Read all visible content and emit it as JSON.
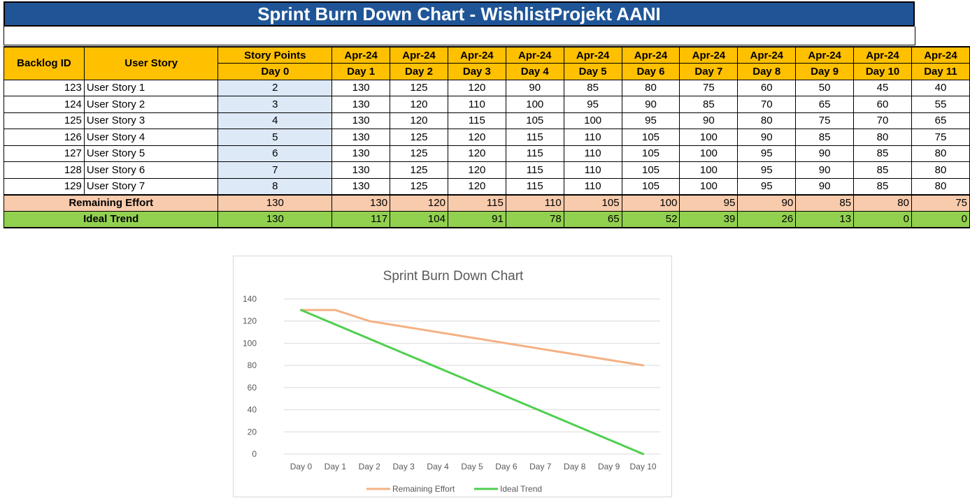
{
  "sheet": {
    "title": "Sprint Burn Down Chart - WishlistProjekt AANI",
    "headers": {
      "backlog_id": "Backlog ID",
      "user_story": "User Story",
      "story_points": "Story Points",
      "day0": "Day 0",
      "month_labels": [
        "Apr-24",
        "Apr-24",
        "Apr-24",
        "Apr-24",
        "Apr-24",
        "Apr-24",
        "Apr-24",
        "Apr-24",
        "Apr-24",
        "Apr-24",
        "Apr-24"
      ],
      "day_labels": [
        "Day 1",
        "Day 2",
        "Day 3",
        "Day 4",
        "Day 5",
        "Day 6",
        "Day 7",
        "Day 8",
        "Day 9",
        "Day 10",
        "Day 11"
      ]
    },
    "rows": [
      {
        "id": "123",
        "story": "User Story 1",
        "points": "2",
        "days": [
          "130",
          "125",
          "120",
          "90",
          "85",
          "80",
          "75",
          "60",
          "50",
          "45",
          "40"
        ]
      },
      {
        "id": "124",
        "story": "User Story  2",
        "points": "3",
        "days": [
          "130",
          "120",
          "110",
          "100",
          "95",
          "90",
          "85",
          "70",
          "65",
          "60",
          "55"
        ]
      },
      {
        "id": "125",
        "story": "User Story 3",
        "points": "4",
        "days": [
          "130",
          "120",
          "115",
          "105",
          "100",
          "95",
          "90",
          "80",
          "75",
          "70",
          "65"
        ]
      },
      {
        "id": "126",
        "story": "User Story 4",
        "points": "5",
        "days": [
          "130",
          "125",
          "120",
          "115",
          "110",
          "105",
          "100",
          "90",
          "85",
          "80",
          "75"
        ]
      },
      {
        "id": "127",
        "story": "User Story 5",
        "points": "6",
        "days": [
          "130",
          "125",
          "120",
          "115",
          "110",
          "105",
          "100",
          "95",
          "90",
          "85",
          "80"
        ]
      },
      {
        "id": "128",
        "story": "User Story 6",
        "points": "7",
        "days": [
          "130",
          "125",
          "120",
          "115",
          "110",
          "105",
          "100",
          "95",
          "90",
          "85",
          "80"
        ]
      },
      {
        "id": "129",
        "story": "User Story 7",
        "points": "8",
        "days": [
          "130",
          "125",
          "120",
          "115",
          "110",
          "105",
          "100",
          "95",
          "90",
          "85",
          "80"
        ]
      }
    ],
    "remaining": {
      "label": "Remaining Effort",
      "day0": "130",
      "days": [
        "130",
        "120",
        "115",
        "110",
        "105",
        "100",
        "95",
        "90",
        "85",
        "80",
        "75"
      ]
    },
    "ideal": {
      "label": "Ideal Trend",
      "day0": "130",
      "days": [
        "117",
        "104",
        "91",
        "78",
        "65",
        "52",
        "39",
        "26",
        "13",
        "0",
        "0"
      ]
    }
  },
  "chart_data": {
    "type": "line",
    "title": "Sprint Burn Down Chart",
    "categories": [
      "Day 0",
      "Day 1",
      "Day 2",
      "Day 3",
      "Day 4",
      "Day 5",
      "Day 6",
      "Day 7",
      "Day 8",
      "Day 9",
      "Day 10"
    ],
    "yticks": [
      "0",
      "20",
      "40",
      "60",
      "80",
      "100",
      "120",
      "140"
    ],
    "ylim": [
      0,
      140
    ],
    "grid": true,
    "legend": "bottom",
    "series": [
      {
        "name": "Remaining Effort",
        "color": "#f4b183",
        "values": [
          130,
          130,
          120,
          115,
          110,
          105,
          100,
          95,
          90,
          85,
          80
        ]
      },
      {
        "name": "Ideal Trend",
        "color": "#4fcf4f",
        "values": [
          130,
          117,
          104,
          91,
          78,
          65,
          52,
          39,
          26,
          13,
          0
        ]
      }
    ]
  },
  "colors": {
    "title_bg": "#1f5597",
    "header_bg": "#ffc000",
    "points_bg": "#dde9f7",
    "remaining_bg": "#f8cbad",
    "ideal_bg": "#92d050"
  }
}
